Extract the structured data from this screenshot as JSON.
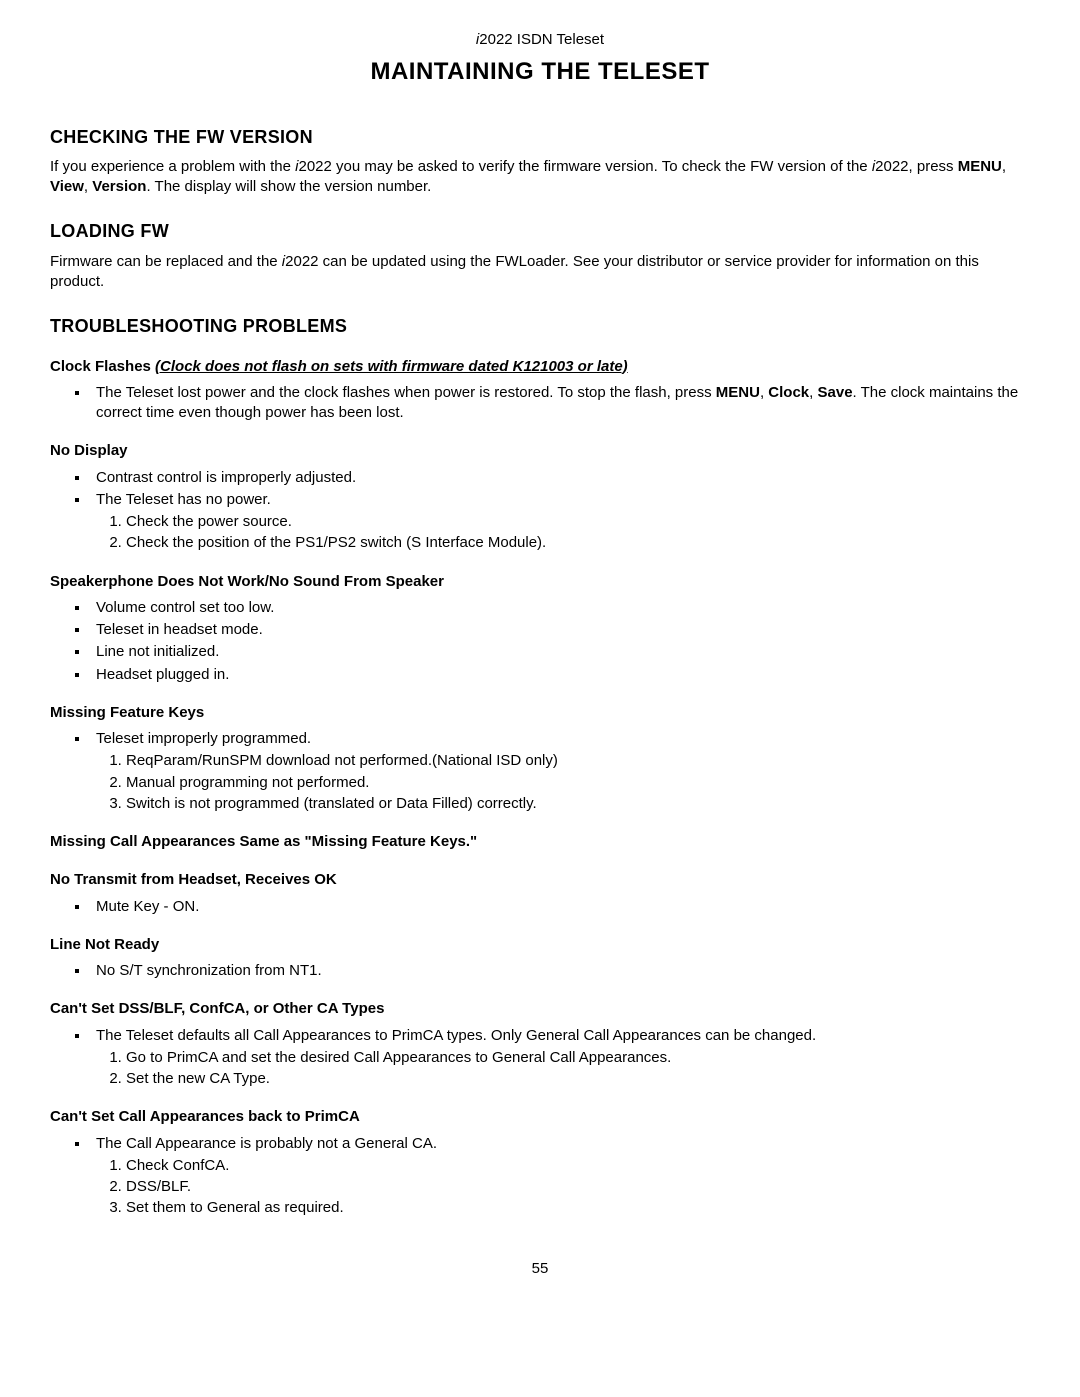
{
  "header": {
    "model_italic": "i",
    "model_rest": "2022 ISDN Teleset"
  },
  "main_title": "MAINTAINING THE TELESET",
  "section_fw_version": {
    "title": "CHECKING THE FW VERSION",
    "p1_a": "If you experience a problem with the ",
    "p1_model_i": "i",
    "p1_b": "2022 you may be asked to verify the firmware version. To check the FW version of the ",
    "p1_model_i2": "i",
    "p1_c": "2022, press ",
    "p1_menu": "MENU",
    "p1_sep1": ", ",
    "p1_view": "View",
    "p1_sep2": ", ",
    "p1_version": "Version",
    "p1_d": ". The display will show the version number."
  },
  "section_loading_fw": {
    "title": "LOADING FW",
    "p1_a": "Firmware can be replaced and the ",
    "p1_model_i": "i",
    "p1_b": "2022 can be updated using the FWLoader. See your distributor or service provider for information on this product."
  },
  "section_troubleshooting": {
    "title": "TROUBLESHOOTING PROBLEMS",
    "clock_flashes": {
      "label": "Clock Flashes ",
      "note": "(Clock does not flash on sets with firmware dated K121003 or late)",
      "b1_a": "The Teleset lost power and the clock flashes when power is restored. To stop the flash, press ",
      "b1_menu": "MENU",
      "b1_sep1": ", ",
      "b1_clock": "Clock",
      "b1_sep2": ", ",
      "b1_save": "Save",
      "b1_b": ". The clock maintains the correct time even though power has been lost."
    },
    "no_display": {
      "label": "No Display",
      "b1": "Contrast control is improperly adjusted.",
      "b2": "The Teleset has no power.",
      "n1": "Check the power source.",
      "n2": "Check the position of the PS1/PS2 switch (S Interface Module)."
    },
    "speakerphone": {
      "label": "Speakerphone Does Not Work/No Sound From Speaker",
      "b1": "Volume control set too low.",
      "b2": "Teleset in headset mode.",
      "b3": "Line not initialized.",
      "b4": "Headset plugged in."
    },
    "missing_feature_keys": {
      "label": "Missing Feature Keys",
      "b1": "Teleset improperly programmed.",
      "n1": "ReqParam/RunSPM download not performed.(National ISD only)",
      "n2": "Manual programming not performed.",
      "n3": "Switch is not programmed (translated or Data Filled) correctly."
    },
    "missing_call_appearances": {
      "label": "Missing Call Appearances Same as \"Missing Feature Keys.\""
    },
    "no_transmit": {
      "label": "No Transmit from Headset, Receives OK",
      "b1": "Mute Key - ON."
    },
    "line_not_ready": {
      "label": "Line Not Ready",
      "b1": "No S/T synchronization from NT1."
    },
    "cant_set_dss": {
      "label": "Can't Set DSS/BLF, ConfCA, or Other CA Types",
      "b1": "The Teleset defaults all Call Appearances to PrimCA types. Only General Call Appearances can be changed.",
      "n1": "Go to PrimCA and set the desired Call Appearances to General Call Appearances.",
      "n2": "Set the new CA Type."
    },
    "cant_set_primca": {
      "label": "Can't Set Call Appearances back to PrimCA",
      "b1": "The Call Appearance is probably not a General CA.",
      "n1": "Check ConfCA.",
      "n2": "DSS/BLF.",
      "n3": "Set them to General as required."
    }
  },
  "page_number": "55"
}
